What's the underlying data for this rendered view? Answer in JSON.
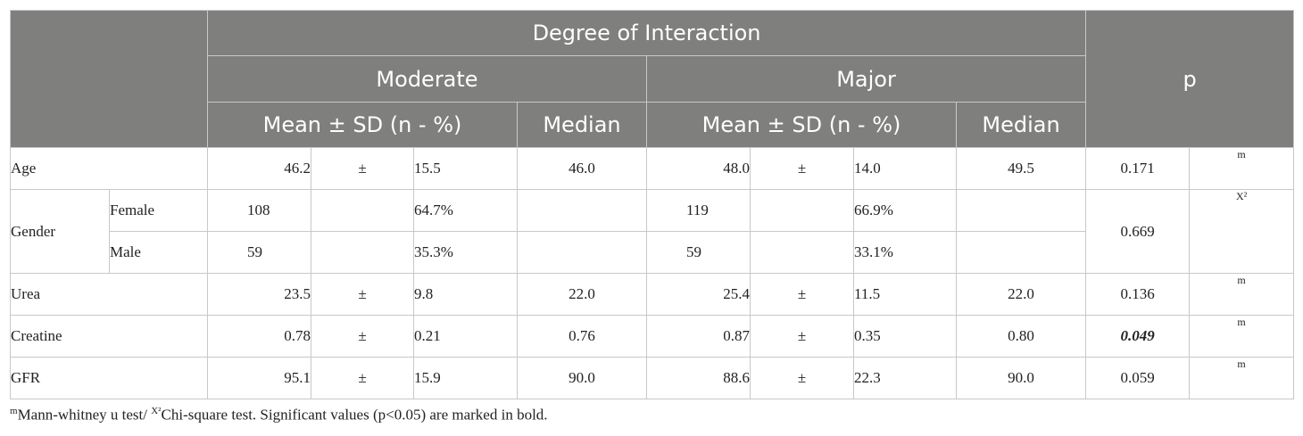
{
  "header": {
    "degree": "Degree of Interaction",
    "moderate": "Moderate",
    "major": "Major",
    "p": "p",
    "mean_sd": "Mean ± SD (n - %)",
    "median": "Median"
  },
  "rows": {
    "age": {
      "label": "Age",
      "mod_mean": "46.2",
      "pm": "±",
      "mod_sd": "15.5",
      "mod_median": "46.0",
      "maj_mean": "48.0",
      "maj_sd": "14.0",
      "maj_median": "49.5",
      "p": "0.171",
      "test": "m"
    },
    "gender": {
      "label": "Gender",
      "female": {
        "label": "Female",
        "mod_n": "108",
        "mod_pct": "64.7%",
        "maj_n": "119",
        "maj_pct": "66.9%"
      },
      "male": {
        "label": "Male",
        "mod_n": "59",
        "mod_pct": "35.3%",
        "maj_n": "59",
        "maj_pct": "33.1%"
      },
      "p": "0.669",
      "test": "X²"
    },
    "urea": {
      "label": "Urea",
      "mod_mean": "23.5",
      "pm": "±",
      "mod_sd": "9.8",
      "mod_median": "22.0",
      "maj_mean": "25.4",
      "maj_sd": "11.5",
      "maj_median": "22.0",
      "p": "0.136",
      "test": "m"
    },
    "creatine": {
      "label": "Creatine",
      "mod_mean": "0.78",
      "pm": "±",
      "mod_sd": "0.21",
      "mod_median": "0.76",
      "maj_mean": "0.87",
      "maj_sd": "0.35",
      "maj_median": "0.80",
      "p": "0.049",
      "test": "m"
    },
    "gfr": {
      "label": "GFR",
      "mod_mean": "95.1",
      "pm": "±",
      "mod_sd": "15.9",
      "mod_median": "90.0",
      "maj_mean": "88.6",
      "maj_sd": "22.3",
      "maj_median": "90.0",
      "p": "0.059",
      "test": "m"
    }
  },
  "footnote": {
    "m_sup": "m",
    "m_text": "Mann-whitney u test/ ",
    "x_sup": "X²",
    "x_text": "Chi-square test. Significant values (p<0.05) are marked in bold."
  },
  "colors": {
    "header_bg": "#7f7f7e",
    "header_text": "#ffffff",
    "border": "#c8c8c8"
  }
}
